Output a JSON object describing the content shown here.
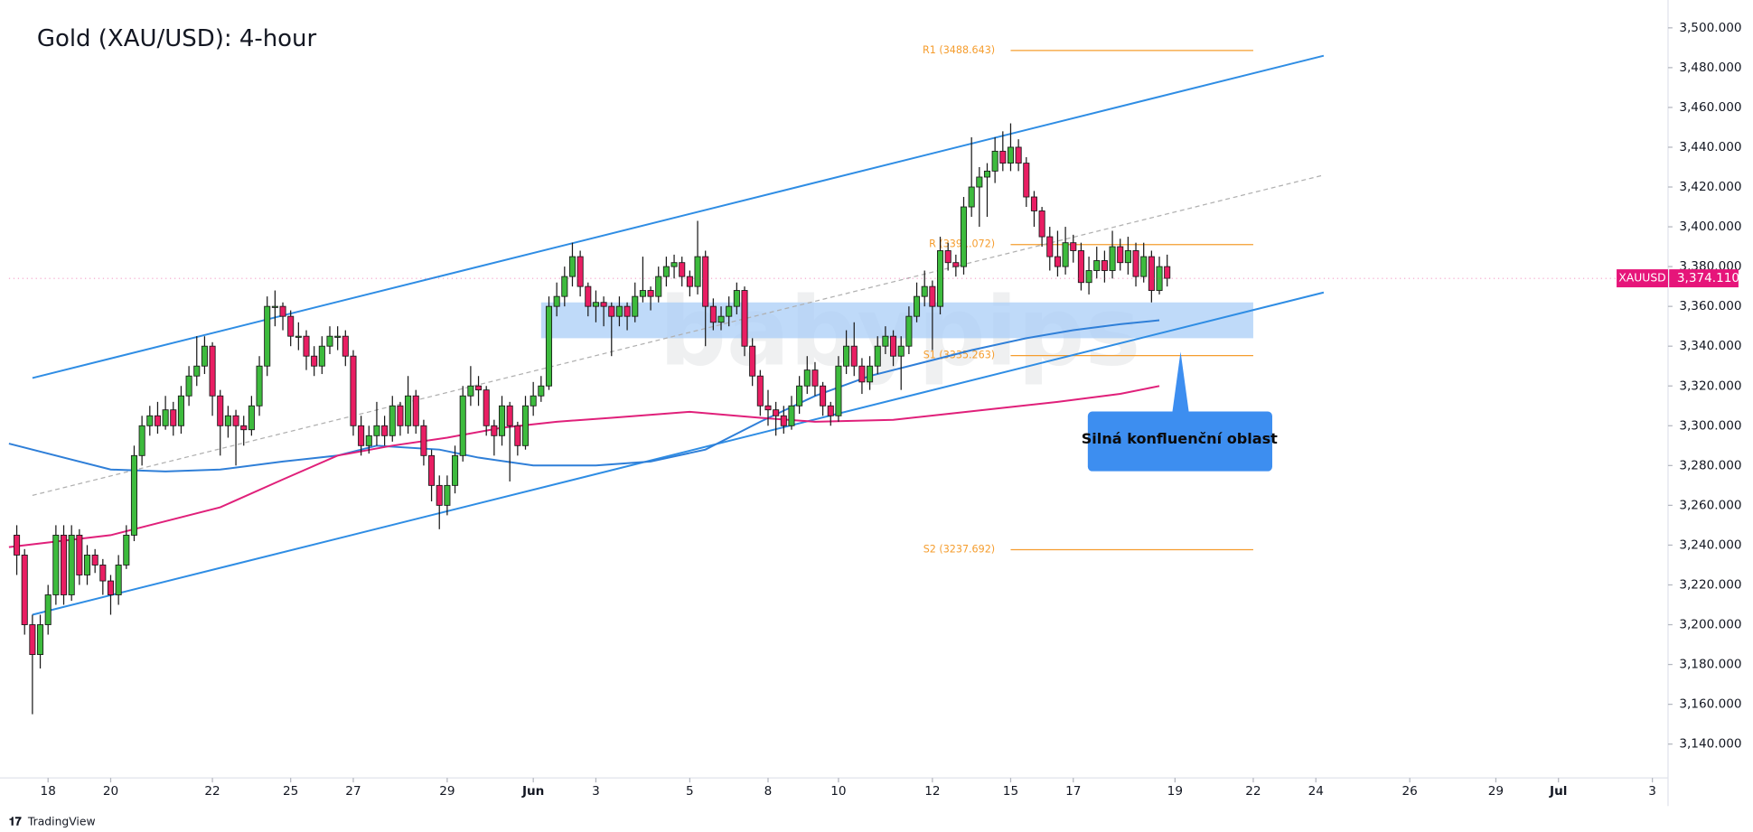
{
  "chart_data": {
    "type": "candlestick",
    "title": "Gold (XAU/USD): 4-hour",
    "watermark": "babypips",
    "footer": "TradingView",
    "up_color": "#3dbb3d",
    "down_color": "#e91e63",
    "xlim": [
      -1,
      211
    ],
    "xticks": [
      {
        "value": 4,
        "label": "18"
      },
      {
        "value": 12,
        "label": "20"
      },
      {
        "value": 25,
        "label": "22"
      },
      {
        "value": 35,
        "label": "25"
      },
      {
        "value": 43,
        "label": "27"
      },
      {
        "value": 55,
        "label": "29"
      },
      {
        "value": 66,
        "label": "Jun"
      },
      {
        "value": 74,
        "label": "3"
      },
      {
        "value": 86,
        "label": "5"
      },
      {
        "value": 96,
        "label": "8"
      },
      {
        "value": 105,
        "label": "10"
      },
      {
        "value": 117,
        "label": "12"
      },
      {
        "value": 127,
        "label": "15"
      },
      {
        "value": 135,
        "label": "17"
      },
      {
        "value": 148,
        "label": "19"
      },
      {
        "value": 158,
        "label": "22"
      },
      {
        "value": 166,
        "label": "24"
      },
      {
        "value": 178,
        "label": "26"
      },
      {
        "value": 189,
        "label": "29"
      },
      {
        "value": 197,
        "label": "Jul"
      },
      {
        "value": 209,
        "label": "3"
      }
    ],
    "ylim": [
      3123,
      3514
    ],
    "yticks": [
      {
        "value": 3140,
        "label": "3,140.000"
      },
      {
        "value": 3160,
        "label": "3,160.000"
      },
      {
        "value": 3180,
        "label": "3,180.000"
      },
      {
        "value": 3200,
        "label": "3,200.000"
      },
      {
        "value": 3220,
        "label": "3,220.000"
      },
      {
        "value": 3240,
        "label": "3,240.000"
      },
      {
        "value": 3260,
        "label": "3,260.000"
      },
      {
        "value": 3280,
        "label": "3,280.000"
      },
      {
        "value": 3300,
        "label": "3,300.000"
      },
      {
        "value": 3320,
        "label": "3,320.000"
      },
      {
        "value": 3340,
        "label": "3,340.000"
      },
      {
        "value": 3360,
        "label": "3,360.000"
      },
      {
        "value": 3380,
        "label": "3,380.000"
      },
      {
        "value": 3400,
        "label": "3,400.000"
      },
      {
        "value": 3420,
        "label": "3,420.000"
      },
      {
        "value": 3440,
        "label": "3,440.000"
      },
      {
        "value": 3460,
        "label": "3,460.000"
      },
      {
        "value": 3480,
        "label": "3,480.000"
      },
      {
        "value": 3500,
        "label": "3,500.000"
      }
    ],
    "ohlc": [
      [
        3245,
        3250,
        3225,
        3235
      ],
      [
        3235,
        3238,
        3195,
        3200
      ],
      [
        3200,
        3205,
        3155,
        3185
      ],
      [
        3185,
        3205,
        3178,
        3200
      ],
      [
        3200,
        3220,
        3195,
        3215
      ],
      [
        3215,
        3250,
        3210,
        3245
      ],
      [
        3245,
        3250,
        3210,
        3215
      ],
      [
        3215,
        3250,
        3212,
        3245
      ],
      [
        3245,
        3248,
        3220,
        3225
      ],
      [
        3225,
        3240,
        3220,
        3235
      ],
      [
        3235,
        3238,
        3226,
        3230
      ],
      [
        3230,
        3233,
        3215,
        3222
      ],
      [
        3222,
        3225,
        3205,
        3215
      ],
      [
        3215,
        3235,
        3210,
        3230
      ],
      [
        3230,
        3250,
        3228,
        3245
      ],
      [
        3245,
        3290,
        3242,
        3285
      ],
      [
        3285,
        3305,
        3280,
        3300
      ],
      [
        3300,
        3310,
        3295,
        3305
      ],
      [
        3305,
        3312,
        3296,
        3300
      ],
      [
        3300,
        3315,
        3298,
        3308
      ],
      [
        3308,
        3312,
        3295,
        3300
      ],
      [
        3300,
        3320,
        3296,
        3315
      ],
      [
        3315,
        3330,
        3310,
        3325
      ],
      [
        3325,
        3345,
        3320,
        3330
      ],
      [
        3330,
        3345,
        3326,
        3340
      ],
      [
        3340,
        3342,
        3305,
        3315
      ],
      [
        3315,
        3318,
        3285,
        3300
      ],
      [
        3300,
        3310,
        3294,
        3305
      ],
      [
        3305,
        3308,
        3280,
        3300
      ],
      [
        3300,
        3305,
        3290,
        3298
      ],
      [
        3298,
        3315,
        3295,
        3310
      ],
      [
        3310,
        3335,
        3305,
        3330
      ],
      [
        3330,
        3365,
        3325,
        3360
      ],
      [
        3360,
        3368,
        3350,
        3360
      ],
      [
        3360,
        3362,
        3348,
        3355
      ],
      [
        3355,
        3358,
        3340,
        3345
      ],
      [
        3345,
        3352,
        3338,
        3345
      ],
      [
        3345,
        3348,
        3328,
        3335
      ],
      [
        3335,
        3340,
        3325,
        3330
      ],
      [
        3330,
        3345,
        3326,
        3340
      ],
      [
        3340,
        3350,
        3336,
        3345
      ],
      [
        3345,
        3350,
        3338,
        3345
      ],
      [
        3345,
        3348,
        3330,
        3335
      ],
      [
        3335,
        3338,
        3295,
        3300
      ],
      [
        3300,
        3305,
        3285,
        3290
      ],
      [
        3290,
        3300,
        3286,
        3295
      ],
      [
        3295,
        3312,
        3290,
        3300
      ],
      [
        3300,
        3305,
        3290,
        3295
      ],
      [
        3295,
        3315,
        3292,
        3310
      ],
      [
        3310,
        3312,
        3295,
        3300
      ],
      [
        3300,
        3325,
        3296,
        3315
      ],
      [
        3315,
        3318,
        3296,
        3300
      ],
      [
        3300,
        3303,
        3280,
        3285
      ],
      [
        3285,
        3288,
        3262,
        3270
      ],
      [
        3270,
        3275,
        3248,
        3260
      ],
      [
        3260,
        3275,
        3255,
        3270
      ],
      [
        3270,
        3290,
        3266,
        3285
      ],
      [
        3285,
        3320,
        3282,
        3315
      ],
      [
        3315,
        3330,
        3310,
        3320
      ],
      [
        3320,
        3325,
        3310,
        3318
      ],
      [
        3318,
        3320,
        3295,
        3300
      ],
      [
        3300,
        3303,
        3285,
        3295
      ],
      [
        3295,
        3315,
        3290,
        3310
      ],
      [
        3310,
        3312,
        3272,
        3300
      ],
      [
        3300,
        3302,
        3285,
        3290
      ],
      [
        3290,
        3315,
        3288,
        3310
      ],
      [
        3310,
        3322,
        3305,
        3315
      ],
      [
        3315,
        3325,
        3312,
        3320
      ],
      [
        3320,
        3365,
        3318,
        3360
      ],
      [
        3360,
        3372,
        3355,
        3365
      ],
      [
        3365,
        3380,
        3360,
        3375
      ],
      [
        3375,
        3392,
        3370,
        3385
      ],
      [
        3385,
        3388,
        3365,
        3370
      ],
      [
        3370,
        3372,
        3355,
        3360
      ],
      [
        3360,
        3368,
        3352,
        3362
      ],
      [
        3362,
        3365,
        3350,
        3360
      ],
      [
        3360,
        3362,
        3335,
        3355
      ],
      [
        3355,
        3365,
        3350,
        3360
      ],
      [
        3360,
        3362,
        3348,
        3355
      ],
      [
        3355,
        3372,
        3352,
        3365
      ],
      [
        3365,
        3385,
        3362,
        3368
      ],
      [
        3368,
        3370,
        3358,
        3365
      ],
      [
        3365,
        3380,
        3362,
        3375
      ],
      [
        3375,
        3385,
        3370,
        3380
      ],
      [
        3380,
        3386,
        3374,
        3382
      ],
      [
        3382,
        3385,
        3370,
        3375
      ],
      [
        3375,
        3378,
        3365,
        3370
      ],
      [
        3370,
        3403,
        3366,
        3385
      ],
      [
        3385,
        3388,
        3340,
        3360
      ],
      [
        3360,
        3364,
        3348,
        3352
      ],
      [
        3352,
        3360,
        3348,
        3355
      ],
      [
        3355,
        3365,
        3350,
        3360
      ],
      [
        3360,
        3372,
        3356,
        3368
      ],
      [
        3368,
        3370,
        3335,
        3340
      ],
      [
        3340,
        3344,
        3320,
        3325
      ],
      [
        3325,
        3328,
        3305,
        3310
      ],
      [
        3310,
        3318,
        3300,
        3308
      ],
      [
        3308,
        3312,
        3295,
        3305
      ],
      [
        3305,
        3310,
        3296,
        3300
      ],
      [
        3300,
        3315,
        3298,
        3310
      ],
      [
        3310,
        3325,
        3306,
        3320
      ],
      [
        3320,
        3335,
        3316,
        3328
      ],
      [
        3328,
        3332,
        3315,
        3320
      ],
      [
        3320,
        3322,
        3305,
        3310
      ],
      [
        3310,
        3312,
        3300,
        3305
      ],
      [
        3305,
        3335,
        3302,
        3330
      ],
      [
        3330,
        3348,
        3326,
        3340
      ],
      [
        3340,
        3352,
        3325,
        3330
      ],
      [
        3330,
        3334,
        3316,
        3322
      ],
      [
        3322,
        3335,
        3318,
        3330
      ],
      [
        3330,
        3345,
        3326,
        3340
      ],
      [
        3340,
        3350,
        3336,
        3345
      ],
      [
        3345,
        3348,
        3330,
        3335
      ],
      [
        3335,
        3345,
        3318,
        3340
      ],
      [
        3340,
        3360,
        3336,
        3355
      ],
      [
        3355,
        3372,
        3352,
        3365
      ],
      [
        3365,
        3378,
        3360,
        3370
      ],
      [
        3370,
        3373,
        3338,
        3360
      ],
      [
        3360,
        3395,
        3356,
        3388
      ],
      [
        3388,
        3392,
        3378,
        3382
      ],
      [
        3382,
        3386,
        3375,
        3380
      ],
      [
        3380,
        3415,
        3376,
        3410
      ],
      [
        3410,
        3445,
        3405,
        3420
      ],
      [
        3420,
        3430,
        3400,
        3425
      ],
      [
        3425,
        3432,
        3405,
        3428
      ],
      [
        3428,
        3445,
        3422,
        3438
      ],
      [
        3438,
        3448,
        3428,
        3432
      ],
      [
        3432,
        3452,
        3428,
        3440
      ],
      [
        3440,
        3444,
        3428,
        3432
      ],
      [
        3432,
        3435,
        3410,
        3415
      ],
      [
        3415,
        3418,
        3400,
        3408
      ],
      [
        3408,
        3410,
        3390,
        3395
      ],
      [
        3395,
        3400,
        3378,
        3385
      ],
      [
        3385,
        3398,
        3375,
        3380
      ],
      [
        3380,
        3400,
        3376,
        3392
      ],
      [
        3392,
        3396,
        3382,
        3388
      ],
      [
        3388,
        3392,
        3368,
        3372
      ],
      [
        3372,
        3385,
        3366,
        3378
      ],
      [
        3378,
        3390,
        3374,
        3383
      ],
      [
        3383,
        3388,
        3372,
        3378
      ],
      [
        3378,
        3398,
        3374,
        3390
      ],
      [
        3390,
        3394,
        3378,
        3382
      ],
      [
        3382,
        3395,
        3376,
        3388
      ],
      [
        3388,
        3392,
        3370,
        3375
      ],
      [
        3375,
        3392,
        3372,
        3385
      ],
      [
        3385,
        3388,
        3362,
        3368
      ],
      [
        3368,
        3385,
        3366,
        3380
      ],
      [
        3380,
        3386,
        3370,
        3374.11
      ]
    ],
    "lines": [
      {
        "color": "#2f7fd8",
        "x": [
          -1,
          12,
          19,
          26,
          34,
          41,
          46,
          54,
          59,
          66,
          74,
          81,
          88,
          95,
          102,
          109,
          116,
          122,
          129,
          135,
          141,
          146
        ],
        "values": [
          3291,
          3278,
          3277,
          3278,
          3282,
          3285,
          3290,
          3288,
          3284,
          3280,
          3280,
          3282,
          3288,
          3302,
          3315,
          3325,
          3332,
          3338,
          3344,
          3348,
          3351,
          3353
        ]
      },
      {
        "color": "#e0207a",
        "x": [
          -1,
          12,
          26,
          34,
          41,
          48,
          55,
          62,
          69,
          76,
          86,
          95,
          102,
          112,
          119,
          126,
          133,
          141,
          146
        ],
        "values": [
          3239,
          3245,
          3259,
          3273,
          3285,
          3290,
          3294,
          3299,
          3302,
          3304,
          3307,
          3304,
          3302,
          3303,
          3306,
          3309,
          3312,
          3316,
          3320
        ]
      }
    ],
    "trendlines": [
      {
        "color": "#2f8de4",
        "dashed": false,
        "x": [
          2,
          167
        ],
        "values": [
          3324,
          3486
        ]
      },
      {
        "color": "#2f8de4",
        "dashed": false,
        "x": [
          2,
          167
        ],
        "values": [
          3205,
          3367
        ]
      },
      {
        "color": "#b0b0b0",
        "dashed": true,
        "x": [
          2,
          167
        ],
        "values": [
          3265,
          3426
        ]
      }
    ],
    "levels": [
      {
        "value": 3488.643,
        "label": "R1 (3488.643)",
        "x": [
          127,
          158
        ]
      },
      {
        "value": 3391.072,
        "label": "R (3391.072)",
        "x": [
          127,
          158
        ]
      },
      {
        "value": 3335.263,
        "label": "S1 (3335.263)",
        "x": [
          127,
          158
        ]
      },
      {
        "value": 3237.692,
        "label": "S2 (3237.692)",
        "x": [
          127,
          158
        ]
      }
    ],
    "level_color": "#f59d2e",
    "zone": {
      "x": [
        67,
        158
      ],
      "values": [
        3344,
        3362
      ]
    },
    "callout": {
      "text": "Silná konfluenční oblast",
      "color": "#3d8ef0"
    },
    "last_price": {
      "symbol": "XAUUSD",
      "value": 3374.11,
      "label": "3,374.110",
      "color": "#e6157a"
    }
  }
}
